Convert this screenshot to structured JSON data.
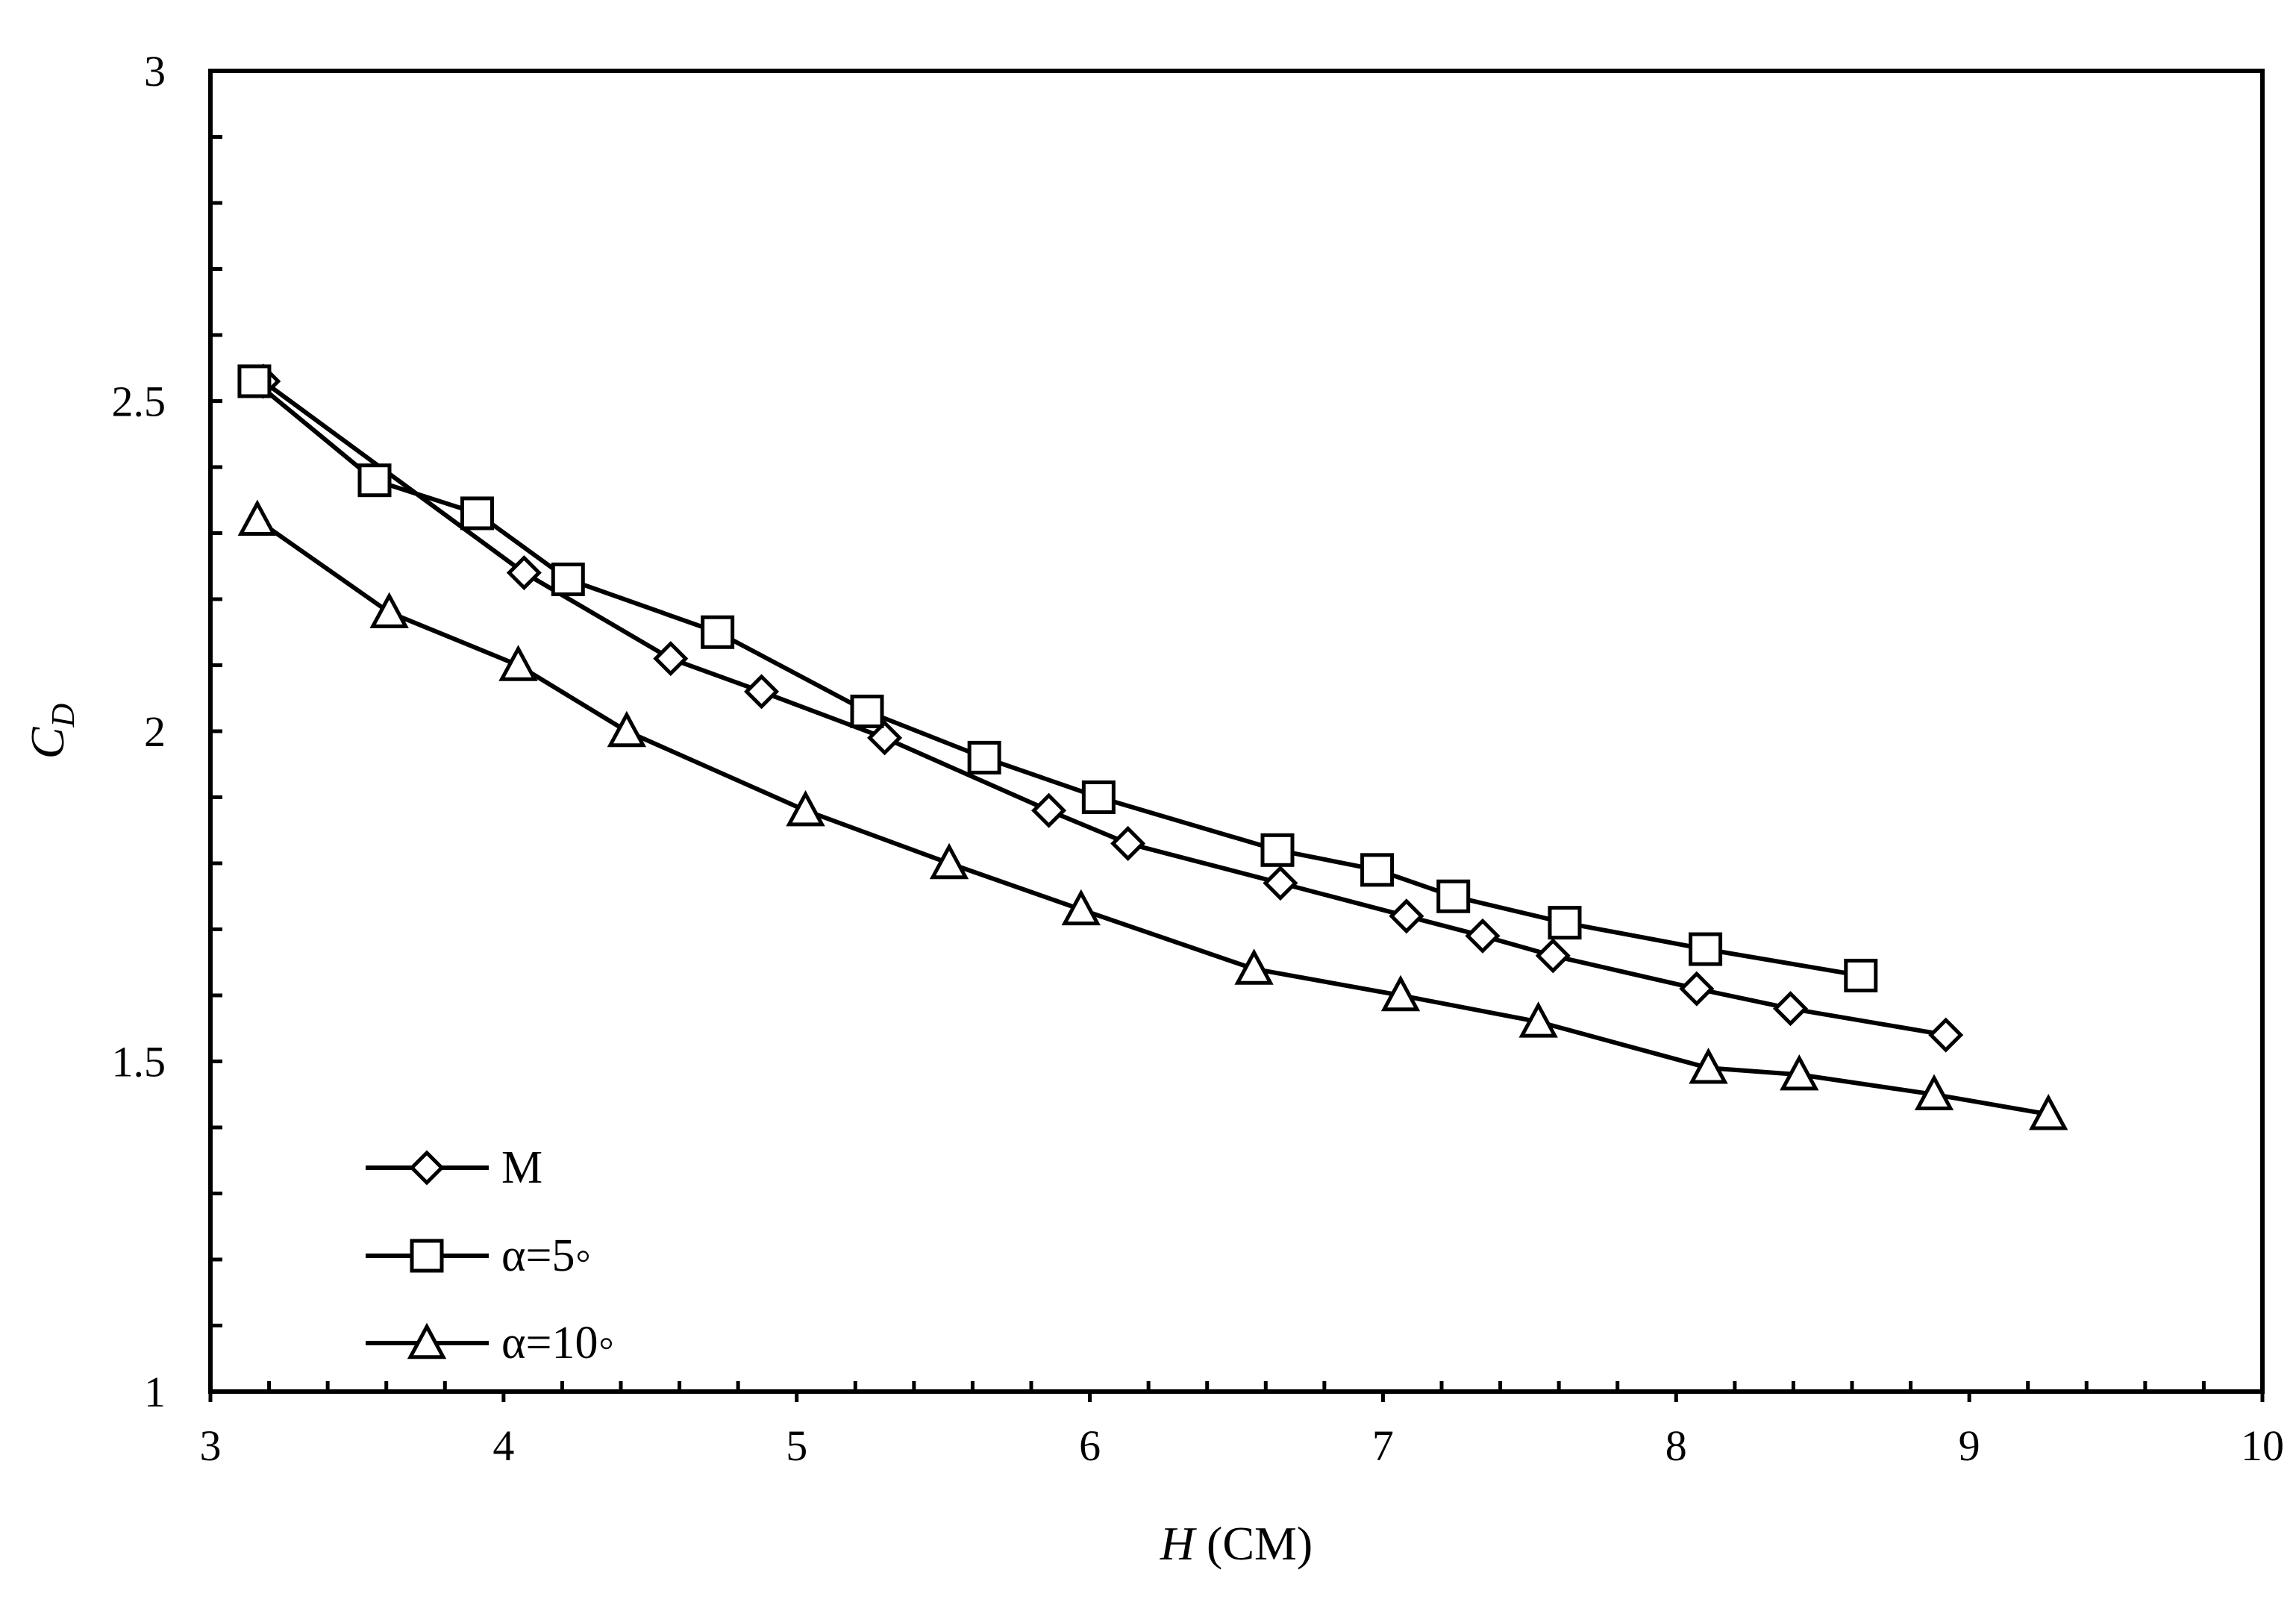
{
  "chart_data": {
    "type": "line",
    "xlabel_italic": "H",
    "xlabel_rest": " (CM)",
    "ylabel_main": "C",
    "ylabel_sub": "D",
    "xlim": [
      3,
      10
    ],
    "ylim": [
      1,
      3
    ],
    "x_ticks": [
      "3",
      "4",
      "5",
      "6",
      "7",
      "8",
      "9",
      "10"
    ],
    "y_ticks": [
      "1",
      "1.5",
      "2",
      "2.5",
      "3"
    ],
    "grid": false,
    "legend_position": "bottom-left",
    "series": [
      {
        "name": "M",
        "marker": "diamond",
        "x": [
          3.18,
          4.07,
          4.57,
          4.88,
          5.3,
          5.86,
          6.13,
          6.65,
          7.08,
          7.34,
          7.58,
          8.07,
          8.39,
          8.92
        ],
        "y": [
          2.53,
          2.24,
          2.11,
          2.06,
          1.99,
          1.88,
          1.83,
          1.77,
          1.72,
          1.69,
          1.66,
          1.61,
          1.58,
          1.54
        ]
      },
      {
        "name": "α=5◦",
        "marker": "square",
        "x": [
          3.15,
          3.56,
          3.91,
          4.22,
          4.73,
          5.24,
          5.64,
          6.03,
          6.64,
          6.98,
          7.24,
          7.62,
          8.1,
          8.63
        ],
        "y": [
          2.53,
          2.38,
          2.33,
          2.23,
          2.15,
          2.03,
          1.96,
          1.9,
          1.82,
          1.79,
          1.75,
          1.71,
          1.67,
          1.63
        ]
      },
      {
        "name": "α=10◦",
        "marker": "triangle",
        "x": [
          3.16,
          3.61,
          4.05,
          4.42,
          5.03,
          5.52,
          5.97,
          6.56,
          7.06,
          7.53,
          8.11,
          8.42,
          8.88,
          9.27
        ],
        "y": [
          2.32,
          2.18,
          2.1,
          2.0,
          1.88,
          1.8,
          1.73,
          1.64,
          1.6,
          1.56,
          1.49,
          1.48,
          1.45,
          1.42
        ]
      }
    ]
  }
}
